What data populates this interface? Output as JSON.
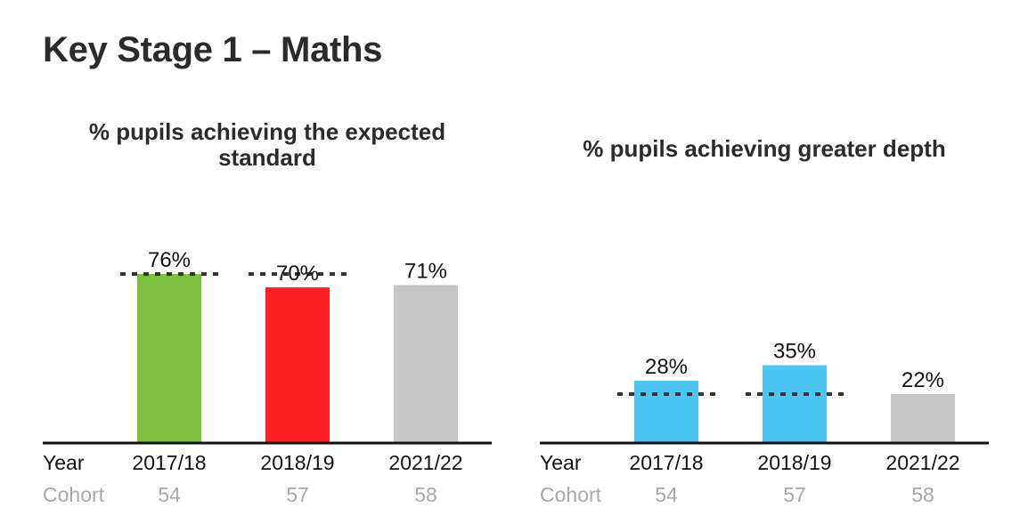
{
  "page": {
    "title": "Key Stage 1 – Maths"
  },
  "chart_data": [
    {
      "type": "bar",
      "title": [
        "% pupils achieving the expected",
        "standard"
      ],
      "categories": [
        "2017/18",
        "2018/19",
        "2021/22"
      ],
      "values": [
        76,
        70,
        71
      ],
      "value_labels": [
        "76%",
        "70%",
        "71%"
      ],
      "reference_values": [
        76,
        76,
        null
      ],
      "bar_colors": [
        "#7dc03f",
        "#ff2126",
        "#c6c6c6"
      ],
      "reference_line_color": "#333333",
      "ylim": [
        0,
        100
      ],
      "rows": [
        {
          "label": "Year",
          "values": [
            "2017/18",
            "2018/19",
            "2021/22"
          ]
        },
        {
          "label": "Cohort",
          "values": [
            "54",
            "57",
            "58"
          ]
        }
      ]
    },
    {
      "type": "bar",
      "title": [
        "% pupils achieving greater depth"
      ],
      "categories": [
        "2017/18",
        "2018/19",
        "2021/22"
      ],
      "values": [
        28,
        35,
        22
      ],
      "value_labels": [
        "28%",
        "35%",
        "22%"
      ],
      "reference_values": [
        22,
        22,
        null
      ],
      "bar_colors": [
        "#4dc5f3",
        "#4dc5f3",
        "#c6c6c6"
      ],
      "reference_line_color": "#333333",
      "ylim": [
        0,
        100
      ],
      "rows": [
        {
          "label": "Year",
          "values": [
            "2017/18",
            "2018/19",
            "2021/22"
          ]
        },
        {
          "label": "Cohort",
          "values": [
            "54",
            "57",
            "58"
          ]
        }
      ]
    }
  ]
}
